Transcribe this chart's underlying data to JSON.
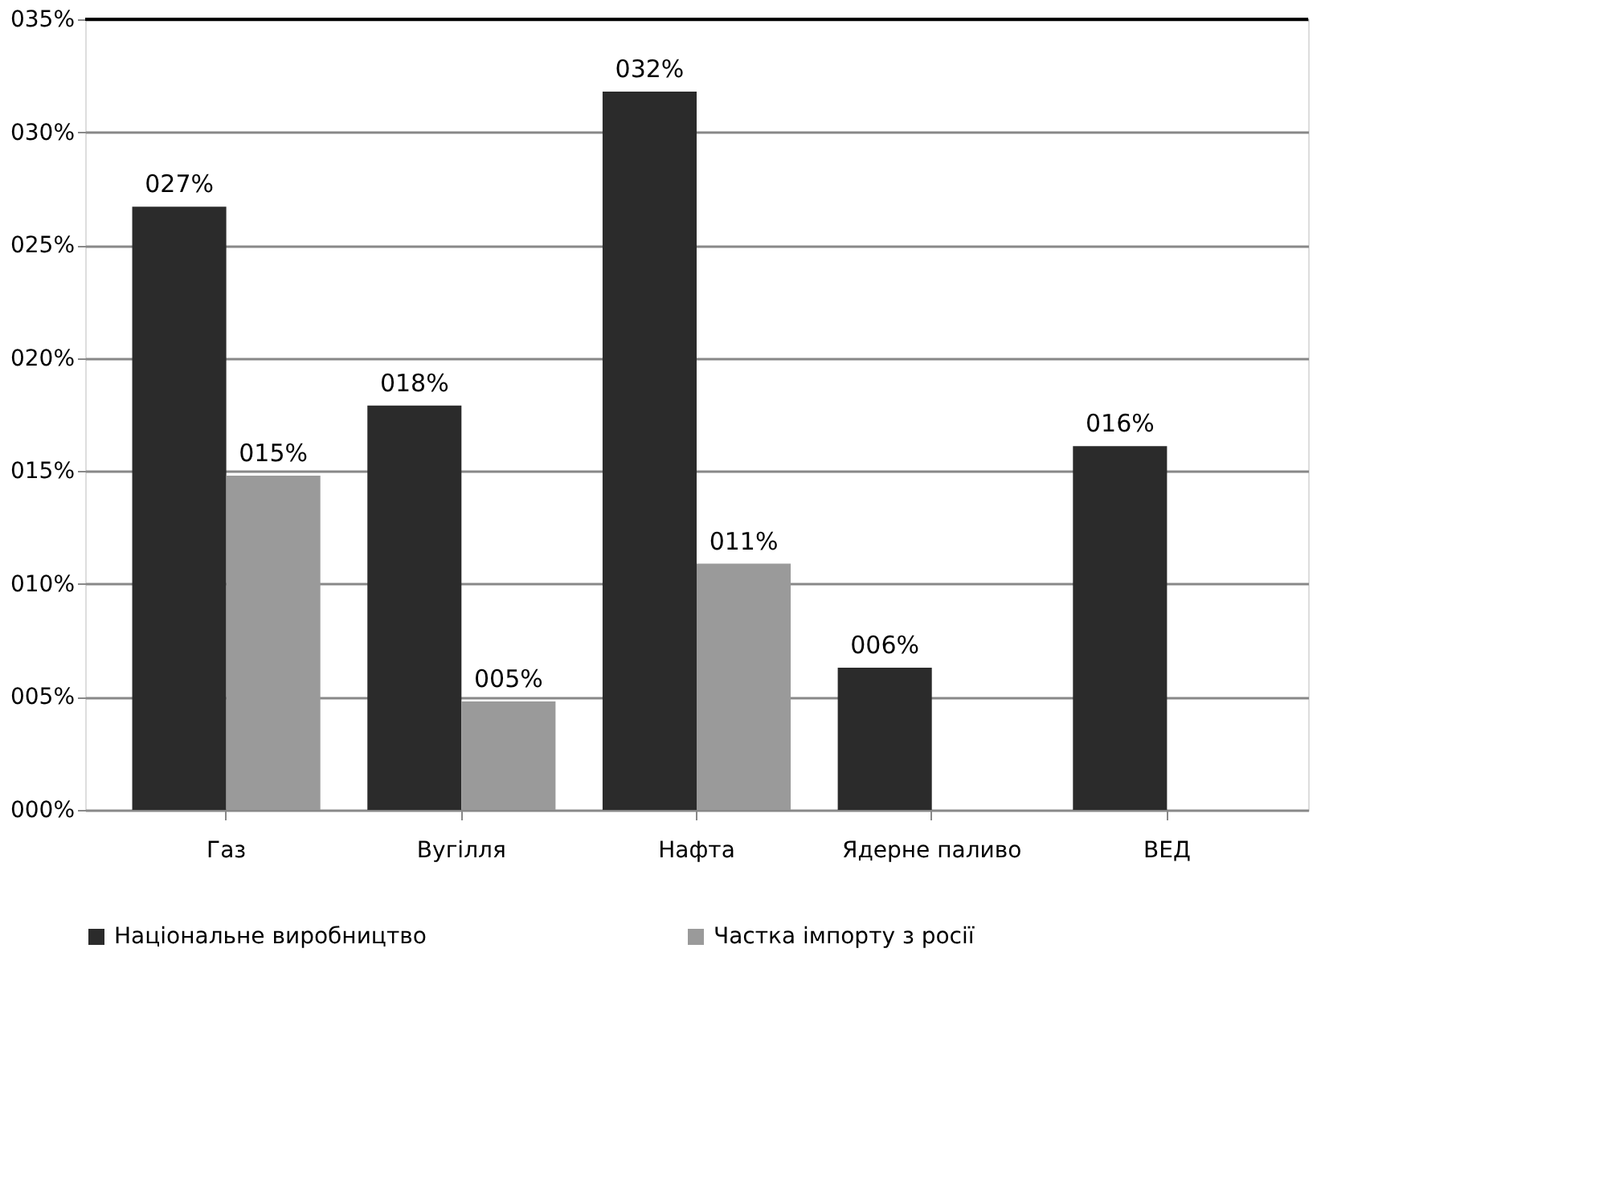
{
  "chart_data": {
    "type": "bar",
    "categories": [
      "Газ",
      "Вугілля",
      "Нафта",
      "Ядерне паливо",
      "ВЕД"
    ],
    "series": [
      {
        "name": "Національне виробництво",
        "color": "#2b2b2b",
        "values": [
          26.7,
          17.9,
          31.8,
          6.3,
          16.1
        ],
        "value_labels": [
          "027%",
          "018%",
          "032%",
          "006%",
          "016%"
        ]
      },
      {
        "name": "Частка імпорту з росії",
        "color": "#9a9a9a",
        "values": [
          14.8,
          4.8,
          10.9,
          null,
          null
        ],
        "value_labels": [
          "015%",
          "005%",
          "011%",
          null,
          null
        ]
      }
    ],
    "ylim": [
      0,
      35
    ],
    "yticks": [
      {
        "value": 0,
        "label": "000%"
      },
      {
        "value": 5,
        "label": "005%"
      },
      {
        "value": 10,
        "label": "010%"
      },
      {
        "value": 15,
        "label": "015%"
      },
      {
        "value": 20,
        "label": "020%"
      },
      {
        "value": 25,
        "label": "025%"
      },
      {
        "value": 30,
        "label": "030%"
      },
      {
        "value": 35,
        "label": "035%"
      }
    ],
    "grid": "y",
    "legend": "bottom"
  }
}
